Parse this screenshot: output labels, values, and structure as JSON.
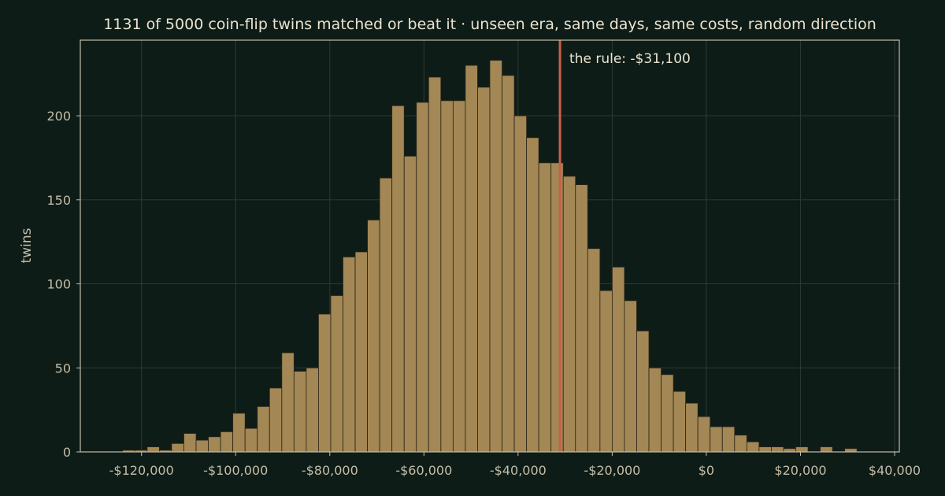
{
  "chart_data": {
    "type": "histogram",
    "title": "1131 of 5000 coin-flip twins matched or beat it  ·  unseen era, same days, same costs, random direction",
    "xlabel": "",
    "ylabel": "twins",
    "xlim": [
      -133000,
      41000
    ],
    "ylim": [
      0,
      245
    ],
    "grid": true,
    "x_ticks": [
      -120000,
      -100000,
      -80000,
      -60000,
      -40000,
      -20000,
      0,
      20000,
      40000
    ],
    "x_tick_labels": [
      "-$120,000",
      "-$100,000",
      "-$80,000",
      "-$60,000",
      "-$40,000",
      "-$20,000",
      "$0",
      "$20,000",
      "$40,000"
    ],
    "y_ticks": [
      0,
      50,
      100,
      150,
      200
    ],
    "y_tick_labels": [
      "0",
      "50",
      "100",
      "150",
      "200"
    ],
    "bin_edges": [
      -124000,
      -121400,
      -118800,
      -116200,
      -113600,
      -111000,
      -108400,
      -105800,
      -103200,
      -100600,
      -98000,
      -95400,
      -92800,
      -90200,
      -87600,
      -85000,
      -82400,
      -79800,
      -77200,
      -74600,
      -72000,
      -69400,
      -66800,
      -64200,
      -61600,
      -59000,
      -56400,
      -53800,
      -51200,
      -48600,
      -46000,
      -43400,
      -40800,
      -38200,
      -35600,
      -33000,
      -30400,
      -27800,
      -25200,
      -22600,
      -20000,
      -17400,
      -14800,
      -12200,
      -9600,
      -7000,
      -4400,
      -1800,
      800,
      3400,
      6000,
      8600,
      11200,
      13800,
      16400,
      19000,
      21600,
      24200,
      26800,
      29400,
      32000
    ],
    "counts": [
      1,
      1,
      3,
      1,
      5,
      11,
      7,
      9,
      12,
      23,
      14,
      27,
      38,
      59,
      48,
      50,
      82,
      93,
      116,
      119,
      138,
      163,
      206,
      176,
      208,
      223,
      209,
      209,
      230,
      217,
      233,
      224,
      200,
      187,
      172,
      172,
      164,
      159,
      121,
      96,
      110,
      90,
      72,
      50,
      46,
      36,
      29,
      21,
      15,
      15,
      10,
      6,
      3,
      3,
      2,
      3,
      0,
      3,
      0,
      2
    ],
    "marker": {
      "x": -31100,
      "label": "the rule: -$31,100",
      "color": "#c8604a"
    }
  },
  "colors": {
    "background": "#0e1c17",
    "bar": "#a38755",
    "marker": "#c8604a",
    "text": "#eae3d0"
  }
}
